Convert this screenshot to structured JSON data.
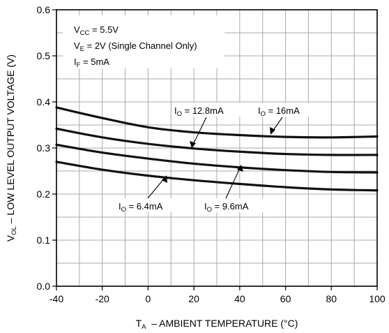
{
  "chart_data": {
    "type": "line",
    "xlabel": {
      "main": "T",
      "sub": "A",
      "rest": "  – AMBIENT TEMPERATURE (°C)"
    },
    "ylabel": {
      "main": "V",
      "sub": "OL",
      "rest": " – LOW LEVEL OUTPUT VOLTAGE (V)"
    },
    "xlim": [
      -40,
      100
    ],
    "ylim": [
      0,
      0.6
    ],
    "xticks": [
      "-40",
      "-20",
      "0",
      "20",
      "40",
      "60",
      "80",
      "100"
    ],
    "yticks": [
      "0.0",
      "0.1",
      "0.2",
      "0.3",
      "0.4",
      "0.5",
      "0.6"
    ],
    "grid": true,
    "conditions": [
      {
        "main": "V",
        "sub": "CC",
        "rest": " = 5.5V"
      },
      {
        "main": "V",
        "sub": "E",
        "rest": " = 2V (Single Channel Only)"
      },
      {
        "main": "I",
        "sub": "F",
        "rest": " = 5mA"
      }
    ],
    "x": [
      -40,
      -20,
      0,
      20,
      40,
      60,
      80,
      100
    ],
    "series": [
      {
        "name": "I_O = 16mA",
        "label": {
          "main": "I",
          "sub": "O",
          "rest": " = 16mA"
        },
        "values": [
          0.388,
          0.365,
          0.345,
          0.334,
          0.328,
          0.324,
          0.323,
          0.325
        ]
      },
      {
        "name": "I_O = 12.8mA",
        "label": {
          "main": "I",
          "sub": "O",
          "rest": " = 12.8mA"
        },
        "values": [
          0.342,
          0.323,
          0.309,
          0.299,
          0.292,
          0.287,
          0.285,
          0.285
        ]
      },
      {
        "name": "I_O = 9.6mA",
        "label": {
          "main": "I",
          "sub": "O",
          "rest": " = 9.6mA"
        },
        "values": [
          0.307,
          0.29,
          0.277,
          0.266,
          0.258,
          0.252,
          0.248,
          0.247
        ]
      },
      {
        "name": "I_O = 6.4mA",
        "label": {
          "main": "I",
          "sub": "O",
          "rest": " = 6.4mA"
        },
        "values": [
          0.27,
          0.253,
          0.24,
          0.23,
          0.222,
          0.215,
          0.21,
          0.208
        ]
      }
    ]
  }
}
